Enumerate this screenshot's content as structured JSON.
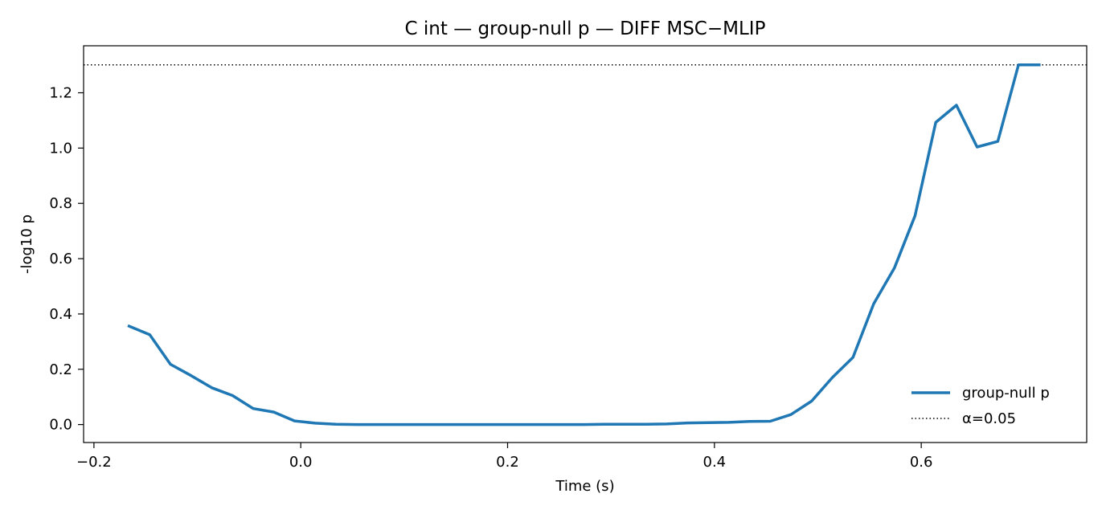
{
  "chart_data": {
    "type": "line",
    "title": "C int — group-null p — DIFF MSC−MLIP",
    "xlabel": "Time (s)",
    "ylabel": "-log10 p",
    "xlim": [
      -0.21,
      0.76
    ],
    "ylim": [
      -0.065,
      1.37
    ],
    "xticks": [
      -0.2,
      0.0,
      0.2,
      0.4,
      0.6
    ],
    "xtick_labels": [
      "−0.2",
      "0.0",
      "0.2",
      "0.4",
      "0.6"
    ],
    "yticks": [
      0.0,
      0.2,
      0.4,
      0.6,
      0.8,
      1.0,
      1.2
    ],
    "ytick_labels": [
      "0.0",
      "0.2",
      "0.4",
      "0.6",
      "0.8",
      "1.0",
      "1.2"
    ],
    "grid": false,
    "legend_position": "lower-right",
    "colors": {
      "series": "#1f77b4",
      "threshold": "#000000"
    },
    "series": [
      {
        "name": "group-null p",
        "style": "solid",
        "x": [
          -0.166,
          -0.146,
          -0.126,
          -0.106,
          -0.086,
          -0.066,
          -0.046,
          -0.026,
          -0.006,
          0.014,
          0.034,
          0.054,
          0.074,
          0.094,
          0.114,
          0.134,
          0.154,
          0.174,
          0.194,
          0.214,
          0.234,
          0.254,
          0.274,
          0.294,
          0.314,
          0.334,
          0.354,
          0.374,
          0.394,
          0.414,
          0.434,
          0.454,
          0.474,
          0.494,
          0.514,
          0.534,
          0.554,
          0.574,
          0.594,
          0.614,
          0.634,
          0.654,
          0.674,
          0.694,
          0.714
        ],
        "y": [
          0.356,
          0.325,
          0.218,
          0.177,
          0.133,
          0.105,
          0.058,
          0.045,
          0.013,
          0.005,
          0.001,
          0.0,
          0.0,
          0.0,
          0.0,
          0.0,
          0.0,
          0.0,
          0.0,
          0.0,
          0.0,
          0.0,
          0.0,
          0.001,
          0.001,
          0.001,
          0.002,
          0.006,
          0.007,
          0.008,
          0.011,
          0.012,
          0.036,
          0.085,
          0.17,
          0.243,
          0.437,
          0.566,
          0.755,
          1.093,
          1.155,
          1.004,
          1.024,
          1.301,
          1.301
        ]
      },
      {
        "name": "α=0.05",
        "style": "dotted",
        "y_constant": 1.301
      }
    ]
  }
}
